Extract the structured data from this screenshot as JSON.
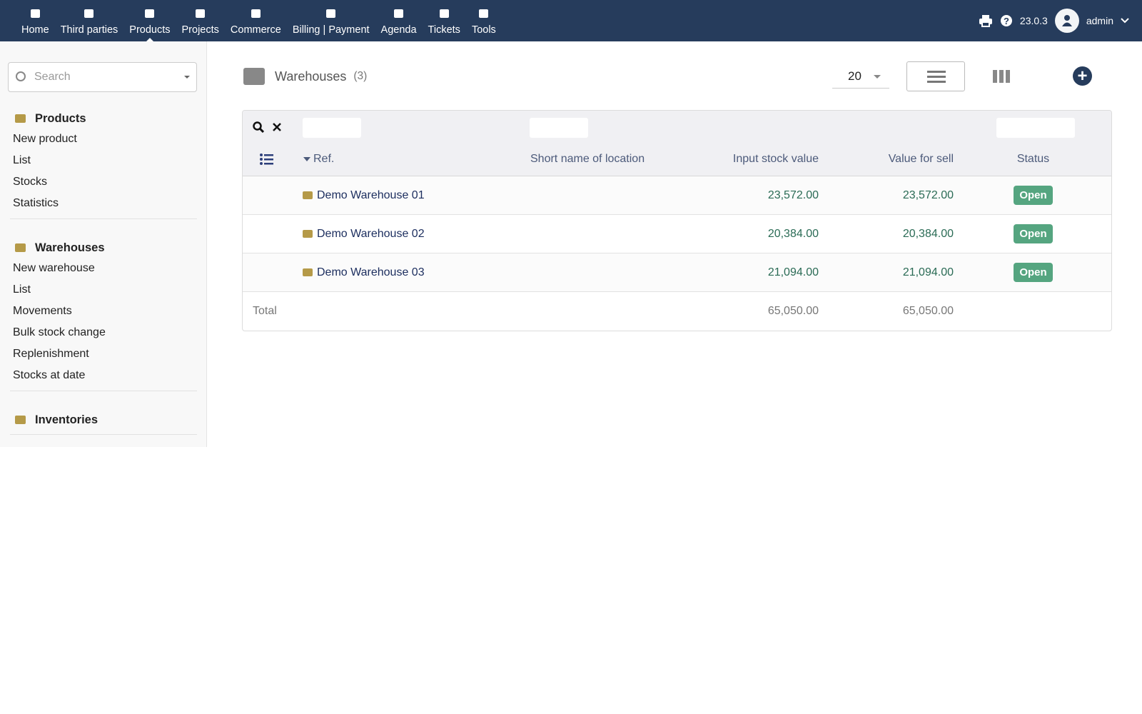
{
  "topnav": {
    "items": [
      "Home",
      "Third parties",
      "Products",
      "Projects",
      "Commerce",
      "Billing | Payment",
      "Agenda",
      "Tickets",
      "Tools"
    ],
    "version": "23.0.3",
    "user": "admin"
  },
  "sidebar": {
    "search_placeholder": "Search",
    "sections": [
      {
        "title": "Products",
        "links": [
          "New product",
          "List",
          "Stocks",
          "Statistics"
        ]
      },
      {
        "title": "Warehouses",
        "links": [
          "New warehouse",
          "List",
          "Movements",
          "Bulk stock change",
          "Replenishment",
          "Stocks at date"
        ]
      },
      {
        "title": "Inventories"
      }
    ]
  },
  "header": {
    "title": "Warehouses",
    "count": "(3)",
    "page_size": 20
  },
  "table": {
    "columns": [
      "Ref.",
      "Short name of location",
      "Input stock value",
      "Value for sell",
      "Status"
    ],
    "rows": [
      {
        "ref": "Demo Warehouse 01",
        "input_stock_value": "23,572.00",
        "value_for_sell": "23,572.00",
        "status": "Open"
      },
      {
        "ref": "Demo Warehouse 02",
        "input_stock_value": "20,384.00",
        "value_for_sell": "20,384.00",
        "status": "Open"
      },
      {
        "ref": "Demo Warehouse 03",
        "input_stock_value": "21,094.00",
        "value_for_sell": "21,094.00",
        "status": "Open"
      }
    ],
    "total": {
      "label": "Total",
      "input_stock_value": "65,050.00",
      "value_for_sell": "65,050.00"
    }
  }
}
